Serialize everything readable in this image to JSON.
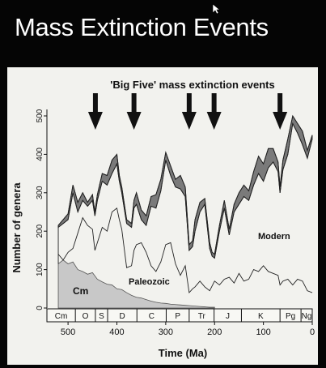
{
  "slide": {
    "title": "Mass Extinction Events"
  },
  "chart_data": {
    "type": "area",
    "title": "'Big Five' mass extinction events",
    "xlabel": "Time (Ma)",
    "ylabel": "Number of genera",
    "xlim": [
      530,
      0
    ],
    "ylim": [
      0,
      500
    ],
    "x_ticks": [
      500,
      400,
      300,
      200,
      100,
      0
    ],
    "y_ticks": [
      0,
      100,
      200,
      300,
      400,
      500
    ],
    "x_reversed": true,
    "grid": false,
    "legend": "none",
    "periods": [
      "Cm",
      "O",
      "S",
      "D",
      "C",
      "P",
      "Tr",
      "J",
      "K",
      "Pg",
      "Ng"
    ],
    "period_bounds": [
      [
        541,
        485
      ],
      [
        485,
        444
      ],
      [
        444,
        419
      ],
      [
        419,
        359
      ],
      [
        359,
        299
      ],
      [
        299,
        252
      ],
      [
        252,
        201
      ],
      [
        201,
        145
      ],
      [
        145,
        66
      ],
      [
        66,
        23
      ],
      [
        23,
        0
      ]
    ],
    "extinction_events_ma": [
      444,
      365,
      252,
      201,
      66
    ],
    "series": [
      {
        "name": "Cm",
        "role": "cambrian_fauna",
        "color": "#c8c8c8",
        "x": [
          520,
          510,
          500,
          490,
          480,
          470,
          460,
          450,
          440,
          430,
          420,
          410,
          400,
          390,
          380,
          370,
          360,
          350,
          340,
          330,
          320,
          310,
          300,
          290,
          280,
          270,
          260,
          250,
          240,
          230,
          220,
          210,
          200
        ],
        "y": [
          115,
          125,
          115,
          120,
          100,
          95,
          88,
          92,
          75,
          68,
          62,
          60,
          50,
          48,
          40,
          33,
          28,
          26,
          22,
          18,
          15,
          13,
          12,
          10,
          9,
          8,
          7,
          6,
          5,
          4,
          3,
          2,
          2
        ]
      },
      {
        "name": "Paleozoic",
        "role": "paleozoic_fauna_top",
        "x": [
          520,
          510,
          500,
          490,
          480,
          470,
          460,
          450,
          445,
          440,
          430,
          420,
          410,
          400,
          395,
          390,
          380,
          370,
          365,
          360,
          350,
          340,
          330,
          320,
          310,
          300,
          290,
          280,
          270,
          260,
          252,
          245,
          240,
          230,
          220,
          210,
          200,
          190,
          180,
          170,
          160,
          150,
          140,
          130,
          120,
          110,
          100,
          90,
          80,
          70,
          66,
          60,
          50,
          40,
          30,
          20,
          10,
          0
        ],
        "y": [
          140,
          125,
          145,
          155,
          195,
          235,
          215,
          205,
          150,
          170,
          210,
          200,
          250,
          260,
          230,
          205,
          105,
          110,
          150,
          165,
          170,
          145,
          110,
          95,
          120,
          165,
          170,
          115,
          85,
          110,
          40,
          50,
          55,
          70,
          55,
          45,
          70,
          60,
          75,
          80,
          65,
          90,
          70,
          75,
          100,
          95,
          110,
          95,
          90,
          85,
          60,
          70,
          75,
          60,
          75,
          70,
          45,
          40
        ]
      },
      {
        "name": "Modern",
        "role": "modern_fauna_top",
        "x": [
          520,
          510,
          500,
          490,
          480,
          470,
          460,
          450,
          445,
          440,
          430,
          420,
          410,
          400,
          395,
          390,
          380,
          370,
          365,
          360,
          350,
          340,
          330,
          320,
          310,
          300,
          290,
          280,
          270,
          260,
          252,
          245,
          240,
          230,
          220,
          210,
          205,
          200,
          190,
          180,
          170,
          160,
          150,
          140,
          130,
          120,
          110,
          100,
          90,
          80,
          70,
          66,
          60,
          50,
          40,
          30,
          20,
          10,
          0
        ],
        "y": [
          210,
          220,
          230,
          300,
          250,
          280,
          265,
          280,
          240,
          280,
          330,
          320,
          350,
          375,
          330,
          300,
          220,
          210,
          260,
          270,
          230,
          215,
          265,
          260,
          305,
          385,
          345,
          315,
          310,
          290,
          150,
          160,
          200,
          250,
          270,
          155,
          135,
          130,
          200,
          260,
          190,
          250,
          270,
          290,
          280,
          320,
          350,
          330,
          365,
          380,
          355,
          300,
          360,
          400,
          480,
          455,
          425,
          390,
          440
        ]
      },
      {
        "name": "Total",
        "role": "total_diversity",
        "color": "#7a7a7a",
        "x": [
          520,
          510,
          500,
          490,
          480,
          470,
          460,
          450,
          445,
          440,
          430,
          420,
          410,
          400,
          395,
          390,
          380,
          370,
          365,
          360,
          350,
          340,
          330,
          320,
          310,
          300,
          290,
          280,
          270,
          260,
          252,
          245,
          240,
          230,
          220,
          210,
          205,
          200,
          190,
          180,
          170,
          160,
          150,
          140,
          130,
          120,
          110,
          100,
          90,
          80,
          70,
          66,
          60,
          50,
          40,
          30,
          20,
          10,
          0
        ],
        "y": [
          215,
          230,
          245,
          320,
          275,
          300,
          275,
          295,
          250,
          295,
          350,
          345,
          385,
          400,
          345,
          315,
          230,
          220,
          280,
          300,
          255,
          240,
          290,
          295,
          335,
          405,
          370,
          335,
          345,
          315,
          165,
          175,
          230,
          275,
          285,
          170,
          145,
          140,
          215,
          280,
          205,
          270,
          300,
          320,
          305,
          355,
          395,
          375,
          415,
          415,
          380,
          315,
          385,
          440,
          500,
          480,
          460,
          410,
          450
        ]
      }
    ],
    "annotations": [
      "Modern",
      "Paleozoic",
      "Cm"
    ]
  }
}
